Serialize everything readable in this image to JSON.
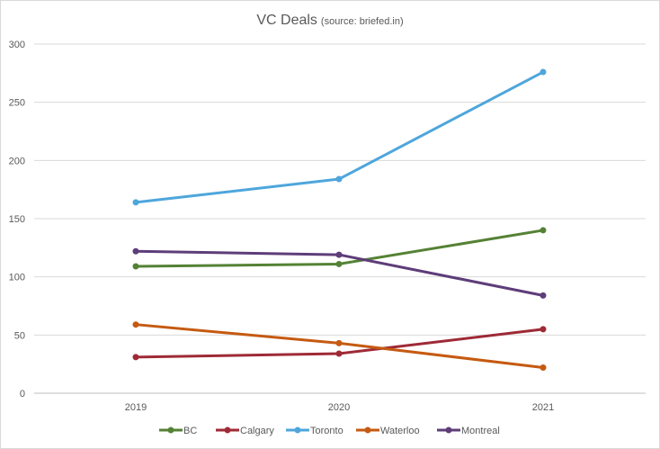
{
  "chart_data": {
    "type": "line",
    "title": "VC Deals",
    "subtitle": "(source: briefed.in)",
    "xlabel": "",
    "ylabel": "",
    "categories": [
      "2019",
      "2020",
      "2021"
    ],
    "ylim": [
      0,
      300
    ],
    "yticks": [
      "0",
      "50",
      "100",
      "150",
      "200",
      "250",
      "300"
    ],
    "grid": true,
    "legend_position": "bottom",
    "series": [
      {
        "name": "BC",
        "color": "#548235",
        "values": [
          109,
          111,
          140
        ]
      },
      {
        "name": "Calgary",
        "color": "#9e2a36",
        "values": [
          31,
          34,
          55
        ]
      },
      {
        "name": "Toronto",
        "color": "#4ea6dc",
        "values": [
          164,
          184,
          276
        ]
      },
      {
        "name": "Waterloo",
        "color": "#c55a11",
        "values": [
          59,
          43,
          22
        ]
      },
      {
        "name": "Montreal",
        "color": "#5e3d79",
        "values": [
          122,
          119,
          84
        ]
      }
    ]
  }
}
